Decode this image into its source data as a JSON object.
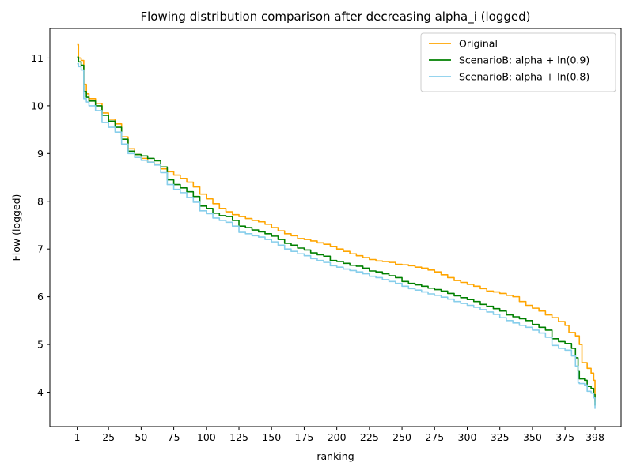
{
  "chart_data": {
    "type": "line",
    "title": "Flowing distribution comparison after decreasing alpha_i (logged)",
    "xlabel": "ranking",
    "ylabel": "Flow (logged)",
    "xlim": [
      -20,
      418
    ],
    "ylim": [
      3.28,
      11.62
    ],
    "x_ticks": [
      1,
      25,
      50,
      75,
      100,
      125,
      150,
      175,
      200,
      225,
      250,
      275,
      300,
      325,
      350,
      375,
      398
    ],
    "y_ticks": [
      4,
      5,
      6,
      7,
      8,
      9,
      10,
      11
    ],
    "grid": false,
    "legend_position": "top-right",
    "series": [
      {
        "name": "Original",
        "color": "#ffa500",
        "points": [
          [
            1,
            11.28
          ],
          [
            2,
            11.0
          ],
          [
            4,
            10.95
          ],
          [
            6,
            10.45
          ],
          [
            8,
            10.25
          ],
          [
            10,
            10.15
          ],
          [
            15,
            10.05
          ],
          [
            20,
            9.85
          ],
          [
            25,
            9.72
          ],
          [
            30,
            9.62
          ],
          [
            35,
            9.35
          ],
          [
            40,
            9.1
          ],
          [
            45,
            8.98
          ],
          [
            50,
            8.9
          ],
          [
            55,
            8.82
          ],
          [
            60,
            8.78
          ],
          [
            65,
            8.68
          ],
          [
            70,
            8.62
          ],
          [
            75,
            8.55
          ],
          [
            80,
            8.48
          ],
          [
            85,
            8.4
          ],
          [
            90,
            8.3
          ],
          [
            95,
            8.15
          ],
          [
            100,
            8.05
          ],
          [
            105,
            7.95
          ],
          [
            110,
            7.85
          ],
          [
            115,
            7.78
          ],
          [
            120,
            7.72
          ],
          [
            125,
            7.68
          ],
          [
            130,
            7.64
          ],
          [
            135,
            7.6
          ],
          [
            140,
            7.57
          ],
          [
            145,
            7.52
          ],
          [
            150,
            7.45
          ],
          [
            155,
            7.38
          ],
          [
            160,
            7.32
          ],
          [
            165,
            7.28
          ],
          [
            170,
            7.22
          ],
          [
            175,
            7.2
          ],
          [
            180,
            7.17
          ],
          [
            185,
            7.13
          ],
          [
            190,
            7.1
          ],
          [
            195,
            7.05
          ],
          [
            200,
            7.0
          ],
          [
            205,
            6.95
          ],
          [
            210,
            6.9
          ],
          [
            215,
            6.86
          ],
          [
            220,
            6.82
          ],
          [
            225,
            6.78
          ],
          [
            230,
            6.75
          ],
          [
            235,
            6.74
          ],
          [
            240,
            6.72
          ],
          [
            245,
            6.68
          ],
          [
            250,
            6.67
          ],
          [
            255,
            6.65
          ],
          [
            260,
            6.62
          ],
          [
            265,
            6.6
          ],
          [
            270,
            6.56
          ],
          [
            275,
            6.52
          ],
          [
            280,
            6.46
          ],
          [
            285,
            6.4
          ],
          [
            290,
            6.34
          ],
          [
            295,
            6.3
          ],
          [
            300,
            6.26
          ],
          [
            305,
            6.22
          ],
          [
            310,
            6.17
          ],
          [
            315,
            6.12
          ],
          [
            320,
            6.1
          ],
          [
            325,
            6.07
          ],
          [
            330,
            6.03
          ],
          [
            335,
            6.0
          ],
          [
            340,
            5.9
          ],
          [
            345,
            5.82
          ],
          [
            350,
            5.76
          ],
          [
            355,
            5.7
          ],
          [
            360,
            5.62
          ],
          [
            365,
            5.56
          ],
          [
            370,
            5.48
          ],
          [
            375,
            5.4
          ],
          [
            378,
            5.25
          ],
          [
            383,
            5.18
          ],
          [
            386,
            5.0
          ],
          [
            388,
            4.62
          ],
          [
            392,
            4.5
          ],
          [
            395,
            4.4
          ],
          [
            397,
            4.25
          ],
          [
            398,
            3.8
          ]
        ]
      },
      {
        "name": "ScenarioB: alpha + ln(0.9)",
        "color": "#008000",
        "points": [
          [
            1,
            11.02
          ],
          [
            2,
            10.92
          ],
          [
            4,
            10.85
          ],
          [
            6,
            10.3
          ],
          [
            8,
            10.18
          ],
          [
            10,
            10.1
          ],
          [
            15,
            10.0
          ],
          [
            20,
            9.8
          ],
          [
            25,
            9.68
          ],
          [
            30,
            9.55
          ],
          [
            35,
            9.3
          ],
          [
            40,
            9.05
          ],
          [
            45,
            8.98
          ],
          [
            50,
            8.95
          ],
          [
            55,
            8.9
          ],
          [
            60,
            8.85
          ],
          [
            65,
            8.72
          ],
          [
            70,
            8.45
          ],
          [
            75,
            8.35
          ],
          [
            80,
            8.28
          ],
          [
            85,
            8.2
          ],
          [
            90,
            8.1
          ],
          [
            95,
            7.9
          ],
          [
            100,
            7.85
          ],
          [
            105,
            7.75
          ],
          [
            110,
            7.7
          ],
          [
            115,
            7.68
          ],
          [
            120,
            7.6
          ],
          [
            125,
            7.48
          ],
          [
            130,
            7.45
          ],
          [
            135,
            7.4
          ],
          [
            140,
            7.36
          ],
          [
            145,
            7.32
          ],
          [
            150,
            7.27
          ],
          [
            155,
            7.2
          ],
          [
            160,
            7.12
          ],
          [
            165,
            7.08
          ],
          [
            170,
            7.02
          ],
          [
            175,
            6.98
          ],
          [
            180,
            6.92
          ],
          [
            185,
            6.88
          ],
          [
            190,
            6.85
          ],
          [
            195,
            6.76
          ],
          [
            200,
            6.74
          ],
          [
            205,
            6.7
          ],
          [
            210,
            6.66
          ],
          [
            215,
            6.64
          ],
          [
            220,
            6.6
          ],
          [
            225,
            6.54
          ],
          [
            230,
            6.52
          ],
          [
            235,
            6.48
          ],
          [
            240,
            6.44
          ],
          [
            245,
            6.4
          ],
          [
            250,
            6.32
          ],
          [
            255,
            6.28
          ],
          [
            260,
            6.25
          ],
          [
            265,
            6.22
          ],
          [
            270,
            6.18
          ],
          [
            275,
            6.15
          ],
          [
            280,
            6.12
          ],
          [
            285,
            6.07
          ],
          [
            290,
            6.02
          ],
          [
            295,
            5.98
          ],
          [
            300,
            5.94
          ],
          [
            305,
            5.9
          ],
          [
            310,
            5.84
          ],
          [
            315,
            5.8
          ],
          [
            320,
            5.75
          ],
          [
            325,
            5.7
          ],
          [
            330,
            5.62
          ],
          [
            335,
            5.58
          ],
          [
            340,
            5.54
          ],
          [
            345,
            5.5
          ],
          [
            350,
            5.42
          ],
          [
            355,
            5.36
          ],
          [
            360,
            5.3
          ],
          [
            365,
            5.12
          ],
          [
            370,
            5.06
          ],
          [
            375,
            5.02
          ],
          [
            380,
            4.92
          ],
          [
            383,
            4.72
          ],
          [
            385,
            4.45
          ],
          [
            386,
            4.28
          ],
          [
            390,
            4.25
          ],
          [
            392,
            4.12
          ],
          [
            395,
            4.08
          ],
          [
            397,
            3.95
          ],
          [
            398,
            3.72
          ]
        ]
      },
      {
        "name": "ScenarioB: alpha + ln(0.8)",
        "color": "#87ceeb",
        "points": [
          [
            1,
            10.88
          ],
          [
            2,
            10.82
          ],
          [
            4,
            10.75
          ],
          [
            6,
            10.15
          ],
          [
            8,
            10.08
          ],
          [
            10,
            10.0
          ],
          [
            15,
            9.9
          ],
          [
            20,
            9.65
          ],
          [
            25,
            9.55
          ],
          [
            30,
            9.45
          ],
          [
            35,
            9.2
          ],
          [
            40,
            9.0
          ],
          [
            45,
            8.92
          ],
          [
            50,
            8.86
          ],
          [
            55,
            8.82
          ],
          [
            60,
            8.76
          ],
          [
            65,
            8.6
          ],
          [
            70,
            8.35
          ],
          [
            75,
            8.25
          ],
          [
            80,
            8.18
          ],
          [
            85,
            8.08
          ],
          [
            90,
            7.98
          ],
          [
            95,
            7.8
          ],
          [
            100,
            7.74
          ],
          [
            105,
            7.65
          ],
          [
            110,
            7.6
          ],
          [
            115,
            7.56
          ],
          [
            120,
            7.48
          ],
          [
            125,
            7.35
          ],
          [
            130,
            7.32
          ],
          [
            135,
            7.28
          ],
          [
            140,
            7.25
          ],
          [
            145,
            7.2
          ],
          [
            150,
            7.15
          ],
          [
            155,
            7.08
          ],
          [
            160,
            7.0
          ],
          [
            165,
            6.95
          ],
          [
            170,
            6.9
          ],
          [
            175,
            6.86
          ],
          [
            180,
            6.8
          ],
          [
            185,
            6.76
          ],
          [
            190,
            6.72
          ],
          [
            195,
            6.65
          ],
          [
            200,
            6.62
          ],
          [
            205,
            6.58
          ],
          [
            210,
            6.55
          ],
          [
            215,
            6.52
          ],
          [
            220,
            6.48
          ],
          [
            225,
            6.43
          ],
          [
            230,
            6.4
          ],
          [
            235,
            6.36
          ],
          [
            240,
            6.32
          ],
          [
            245,
            6.28
          ],
          [
            250,
            6.22
          ],
          [
            255,
            6.17
          ],
          [
            260,
            6.14
          ],
          [
            265,
            6.1
          ],
          [
            270,
            6.06
          ],
          [
            275,
            6.03
          ],
          [
            280,
            5.99
          ],
          [
            285,
            5.95
          ],
          [
            290,
            5.9
          ],
          [
            295,
            5.86
          ],
          [
            300,
            5.82
          ],
          [
            305,
            5.78
          ],
          [
            310,
            5.73
          ],
          [
            315,
            5.68
          ],
          [
            320,
            5.63
          ],
          [
            325,
            5.56
          ],
          [
            330,
            5.5
          ],
          [
            335,
            5.45
          ],
          [
            340,
            5.4
          ],
          [
            345,
            5.36
          ],
          [
            350,
            5.3
          ],
          [
            355,
            5.24
          ],
          [
            360,
            5.15
          ],
          [
            365,
            4.98
          ],
          [
            370,
            4.92
          ],
          [
            375,
            4.88
          ],
          [
            380,
            4.76
          ],
          [
            383,
            4.55
          ],
          [
            385,
            4.2
          ],
          [
            386,
            4.18
          ],
          [
            390,
            4.15
          ],
          [
            392,
            4.02
          ],
          [
            395,
            3.98
          ],
          [
            397,
            3.88
          ],
          [
            398,
            3.65
          ]
        ]
      }
    ]
  }
}
